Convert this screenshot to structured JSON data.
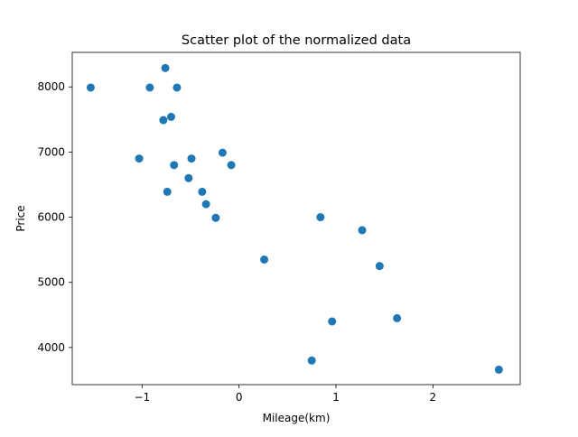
{
  "chart_data": {
    "type": "scatter",
    "title": "Scatter plot of the normalized data",
    "xlabel": "Mileage(km)",
    "ylabel": "Price",
    "xlim": [
      -1.72,
      2.9
    ],
    "ylim": [
      3430,
      8530
    ],
    "xticks": [
      -1,
      0,
      1,
      2
    ],
    "xtick_labels": [
      "−1",
      "0",
      "1",
      "2"
    ],
    "yticks": [
      4000,
      5000,
      6000,
      7000,
      8000
    ],
    "ytick_labels": [
      "4000",
      "5000",
      "6000",
      "7000",
      "8000"
    ],
    "grid": false,
    "marker_color": "#1f77b4",
    "points": [
      {
        "x": -1.53,
        "y": 7990
      },
      {
        "x": -0.76,
        "y": 8290
      },
      {
        "x": -0.92,
        "y": 7990
      },
      {
        "x": -0.64,
        "y": 7990
      },
      {
        "x": -0.7,
        "y": 7540
      },
      {
        "x": -0.78,
        "y": 7490
      },
      {
        "x": -1.03,
        "y": 6900
      },
      {
        "x": -0.67,
        "y": 6800
      },
      {
        "x": -0.49,
        "y": 6900
      },
      {
        "x": -0.17,
        "y": 6990
      },
      {
        "x": -0.08,
        "y": 6800
      },
      {
        "x": -0.52,
        "y": 6600
      },
      {
        "x": -0.74,
        "y": 6390
      },
      {
        "x": -0.38,
        "y": 6390
      },
      {
        "x": -0.34,
        "y": 6200
      },
      {
        "x": -0.24,
        "y": 5990
      },
      {
        "x": 0.84,
        "y": 6000
      },
      {
        "x": 1.27,
        "y": 5800
      },
      {
        "x": 0.26,
        "y": 5350
      },
      {
        "x": 1.45,
        "y": 5250
      },
      {
        "x": 0.96,
        "y": 4400
      },
      {
        "x": 1.63,
        "y": 4450
      },
      {
        "x": 0.75,
        "y": 3800
      },
      {
        "x": 2.68,
        "y": 3660
      }
    ]
  }
}
